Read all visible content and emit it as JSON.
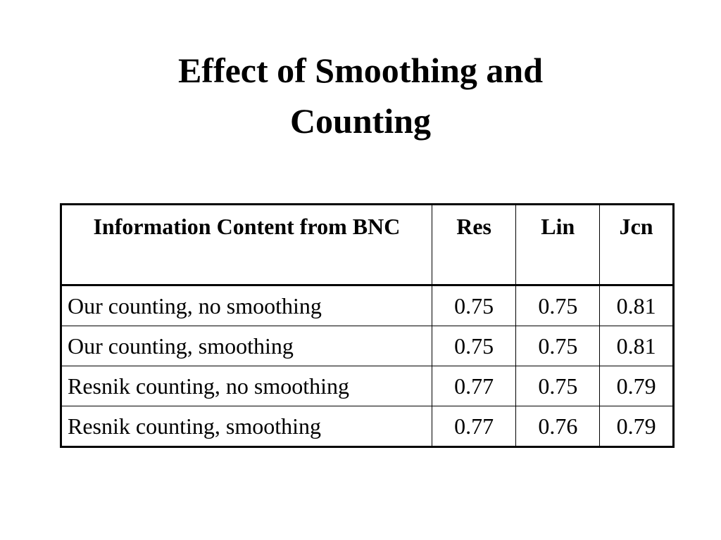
{
  "title": "Effect of Smoothing and Counting",
  "table": {
    "header": [
      "Information Content from BNC",
      "Res",
      "Lin",
      "Jcn"
    ],
    "rows": [
      [
        "Our counting, no smoothing",
        0.75,
        0.75,
        0.81
      ],
      [
        "Our counting, smoothing",
        0.75,
        0.75,
        0.81
      ],
      [
        "Resnik counting, no smoothing",
        0.77,
        0.75,
        0.79
      ],
      [
        "Resnik counting, smoothing",
        0.77,
        0.76,
        0.79
      ]
    ]
  }
}
